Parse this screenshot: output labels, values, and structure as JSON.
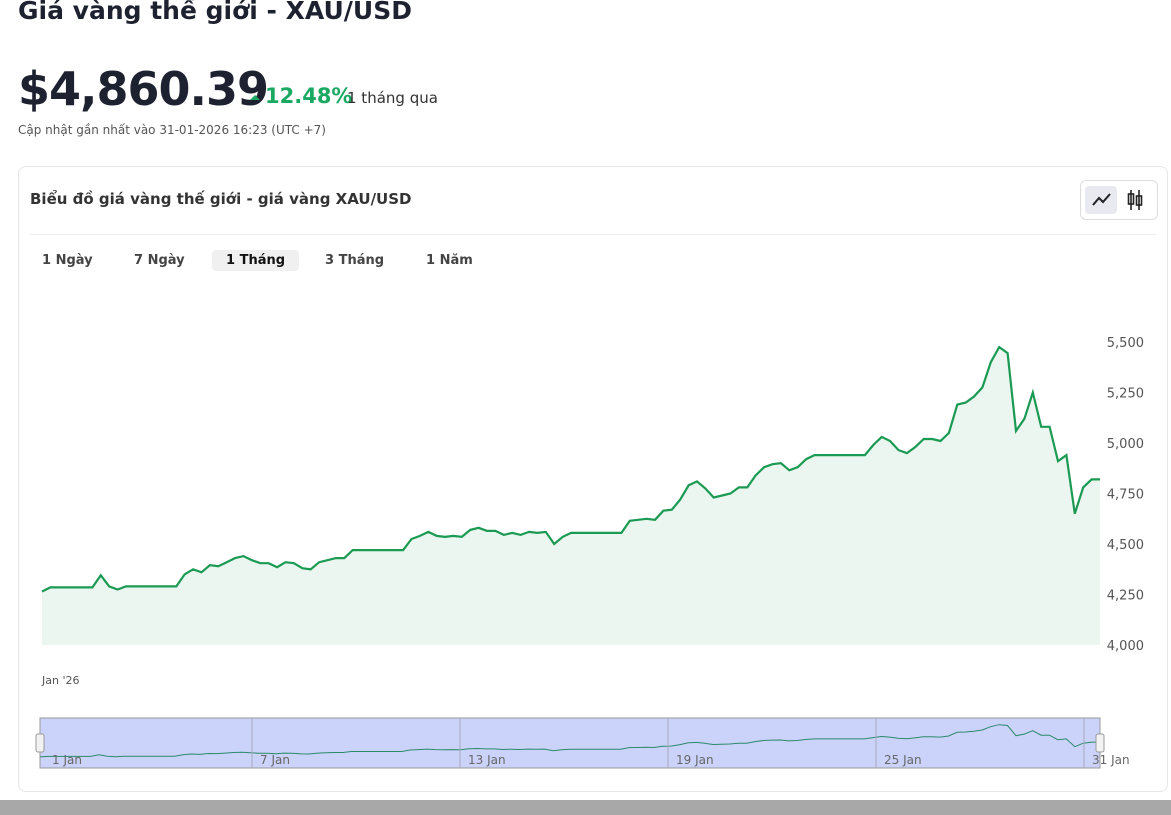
{
  "header": {
    "title": "Giá vàng thế giới - XAU/USD",
    "price": "$4,860.39",
    "change": "12.48%",
    "period": "1 tháng qua",
    "updated": "Cập nhật gần nhất vào 31-01-2026 16:23 (UTC +7)"
  },
  "card": {
    "title": "Biểu đồ giá vàng thế giới - giá vàng XAU/USD",
    "tabs": [
      "1 Ngày",
      "7 Ngày",
      "1 Tháng",
      "3 Tháng",
      "1 Năm"
    ],
    "active_tab": 2
  },
  "chart": {
    "type": "line",
    "color": "#1a9a52",
    "x_label": "Jan '26",
    "values": [
      4265,
      4285,
      4285,
      4285,
      4285,
      4285,
      4285,
      4345,
      4290,
      4275,
      4290,
      4290,
      4290,
      4290,
      4290,
      4290,
      4290,
      4350,
      4375,
      4360,
      4395,
      4390,
      4410,
      4430,
      4440,
      4420,
      4405,
      4405,
      4385,
      4410,
      4405,
      4380,
      4375,
      4410,
      4420,
      4430,
      4430,
      4470,
      4470,
      4470,
      4470,
      4470,
      4470,
      4470,
      4525,
      4540,
      4560,
      4540,
      4535,
      4540,
      4535,
      4570,
      4580,
      4565,
      4565,
      4545,
      4555,
      4545,
      4560,
      4555,
      4560,
      4500,
      4535,
      4555,
      4555,
      4555,
      4555,
      4555,
      4555,
      4555,
      4615,
      4620,
      4625,
      4620,
      4665,
      4670,
      4720,
      4790,
      4810,
      4775,
      4730,
      4740,
      4750,
      4780,
      4780,
      4840,
      4880,
      4895,
      4900,
      4865,
      4880,
      4920,
      4940,
      4940,
      4940,
      4940,
      4940,
      4940,
      4940,
      4990,
      5030,
      5010,
      4965,
      4950,
      4980,
      5020,
      5020,
      5010,
      5050,
      5190,
      5200,
      5230,
      5275,
      5400,
      5475,
      5445,
      5060,
      5120,
      5250,
      5080,
      5080,
      4910,
      4940,
      4650,
      4780,
      4820,
      4820
    ],
    "ylim": [
      4000,
      5500
    ],
    "yticks": [
      {
        "value": 4000,
        "label": "4,000"
      },
      {
        "value": 4250,
        "label": "4,250"
      },
      {
        "value": 4500,
        "label": "4,500"
      },
      {
        "value": 4750,
        "label": "4,750"
      },
      {
        "value": 5000,
        "label": "5,000"
      },
      {
        "value": 5250,
        "label": "5,250"
      },
      {
        "value": 5500,
        "label": "5,500"
      }
    ],
    "navigator_labels": [
      "1 Jan",
      "7 Jan",
      "13 Jan",
      "19 Jan",
      "25 Jan",
      "31 Jan"
    ]
  }
}
